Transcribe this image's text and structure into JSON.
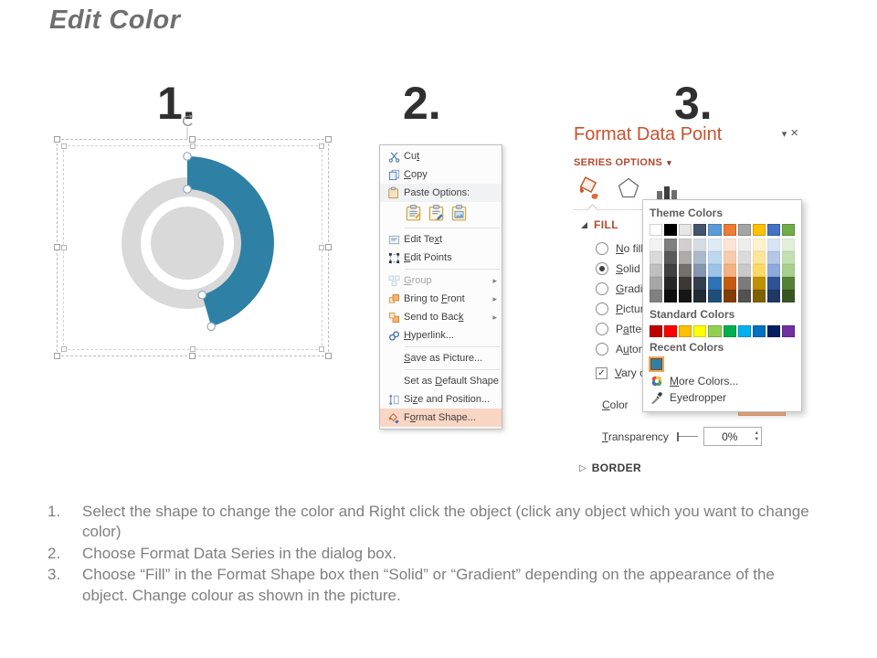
{
  "slide": {
    "title": "Edit Color",
    "step_numbers": [
      "1.",
      "2.",
      "3."
    ],
    "instructions": [
      "Select the shape to change the color and Right click the object (click any object which you want to change color)",
      "Choose Format Data Series in the dialog box.",
      "Choose “Fill” in the Format Shape box then “Solid” or “Gradient” depending on the appearance of the object. Change colour as shown in the picture."
    ]
  },
  "glyphs": {
    "dropdown": "▾",
    "submenu": "▸",
    "close": "×",
    "collapsed": "▷",
    "check": "✓",
    "spin_up": "▴",
    "spin_down": "▾"
  },
  "donut": {
    "accent_color": "#2E80A5",
    "gray_color": "#D9D9D9"
  },
  "context_menu": {
    "items": [
      {
        "label": "Cut",
        "ul": 2,
        "icon": "scissors-icon"
      },
      {
        "label": "Copy",
        "ul": 0,
        "icon": "copy-icon"
      },
      {
        "label": "Paste Options:",
        "ul": -1,
        "icon": "paste-icon"
      },
      {
        "label": "Edit Text",
        "ul": 7,
        "icon": "edit-text-icon"
      },
      {
        "label": "Edit Points",
        "ul": 0,
        "icon": "edit-points-icon"
      },
      {
        "label": "Group",
        "ul": 0,
        "icon": "group-icon",
        "disabled": true,
        "submenu": true
      },
      {
        "label": "Bring to Front",
        "ul": 9,
        "icon": "bring-to-front-icon",
        "submenu": true
      },
      {
        "label": "Send to Back",
        "ul": 11,
        "icon": "send-to-back-icon",
        "submenu": true
      },
      {
        "label": "Hyperlink...",
        "ul": 0,
        "icon": "hyperlink-icon"
      },
      {
        "label": "Save as Picture...",
        "ul": 0,
        "icon": null
      },
      {
        "label": "Set as Default Shape",
        "ul": 7,
        "icon": null
      },
      {
        "label": "Size and Position...",
        "ul": 2,
        "icon": "size-position-icon"
      },
      {
        "label": "Format Shape...",
        "ul": 1,
        "icon": "format-shape-icon",
        "highlighted": true
      }
    ]
  },
  "format_panel": {
    "title": "Format Data Point",
    "series_options_label": "SERIES OPTIONS",
    "fill_section_label": "FILL",
    "border_section_label": "BORDER",
    "radios": [
      {
        "label": "No fill",
        "ul": 0,
        "selected": false
      },
      {
        "label": "Solid fill",
        "ul": 0,
        "selected": true
      },
      {
        "label": "Gradient fill",
        "ul": 0,
        "selected": false
      },
      {
        "label": "Picture or texture fill",
        "ul": 0,
        "selected": false
      },
      {
        "label": "Pattern fill",
        "ul": 1,
        "selected": false
      },
      {
        "label": "Automatic",
        "ul": 1,
        "selected": false
      }
    ],
    "vary_checkbox": {
      "label": "Vary colors by slice",
      "ul": 0,
      "checked": true
    },
    "color_label": "Color",
    "color_label_ul": 0,
    "transparency_label": "Transparency",
    "transparency_label_ul": 0,
    "transparency_value": "0%"
  },
  "color_picker": {
    "theme_header": "Theme Colors",
    "standard_header": "Standard Colors",
    "recent_header": "Recent Colors",
    "more_colors_label": "More Colors...",
    "more_colors_ul": 0,
    "eyedropper_label": "Eyedropper",
    "theme_colors": [
      "#FFFFFF",
      "#000000",
      "#E7E6E6",
      "#44546A",
      "#5B9BD5",
      "#ED7D31",
      "#A5A5A5",
      "#FFC000",
      "#4472C4",
      "#70AD47"
    ],
    "theme_variants": [
      "#F2F2F2",
      "#7F7F7F",
      "#D0CECE",
      "#D6DCE4",
      "#DEEBF6",
      "#FBE5D5",
      "#EDEDED",
      "#FFF2CC",
      "#DAE3F3",
      "#E2EFD9",
      "#D9D9D9",
      "#595959",
      "#AEABAB",
      "#ACB9CA",
      "#BDD7EE",
      "#F7CBAC",
      "#DBDBDB",
      "#FFE599",
      "#B4C7E7",
      "#C5E0B3",
      "#BFBFBF",
      "#404040",
      "#757070",
      "#8496B0",
      "#9DC3E6",
      "#F4B183",
      "#C9C9C9",
      "#FFD965",
      "#8EAADB",
      "#A8D08D",
      "#A6A6A6",
      "#262626",
      "#3B3838",
      "#333F4F",
      "#2E74B5",
      "#C55A11",
      "#7B7B7B",
      "#BF9000",
      "#2F5496",
      "#538135",
      "#808080",
      "#0D0D0D",
      "#171616",
      "#222A35",
      "#1F4E79",
      "#833C00",
      "#525252",
      "#7F6000",
      "#1F3864",
      "#375623"
    ],
    "standard_colors": [
      "#C00000",
      "#FF0000",
      "#FFC000",
      "#FFFF00",
      "#92D050",
      "#00B050",
      "#00B0F0",
      "#0070C0",
      "#002060",
      "#7030A0"
    ],
    "recent_colors": [
      "#2E80A5"
    ]
  }
}
